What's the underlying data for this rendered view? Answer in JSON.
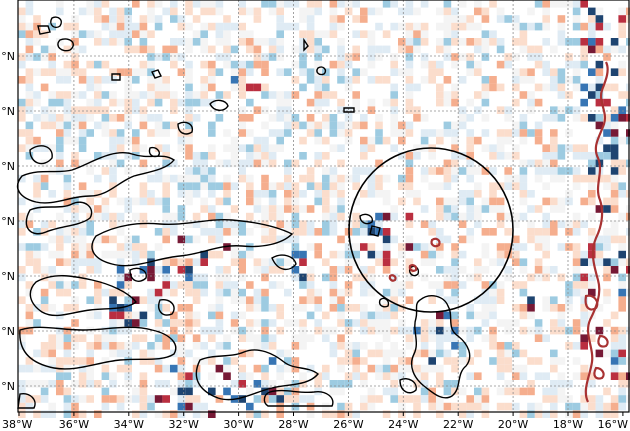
{
  "title": "…",
  "map": {
    "x_ticks": [
      "38°W",
      "36°W",
      "34°W",
      "32°W",
      "30°W",
      "28°W",
      "26°W",
      "24°W",
      "22°W",
      "20°W",
      "18°W",
      "16°W"
    ],
    "y_ticks": [
      "°N",
      "°N",
      "°N",
      "°N",
      "°N",
      "°N",
      "°N"
    ],
    "circle_marker": {
      "label": ""
    },
    "colors": {
      "dark_red": "#67001f",
      "red": "#b2182b",
      "light_red": "#f4a582",
      "pale_red": "#fbd9c7",
      "dark_blue": "#053061",
      "blue": "#2166ac",
      "light_blue": "#92c5de",
      "pale_blue": "#dbe9f3",
      "grey": "#f0f0f0",
      "coast": "#000000",
      "coast_red": "#a83232"
    }
  }
}
